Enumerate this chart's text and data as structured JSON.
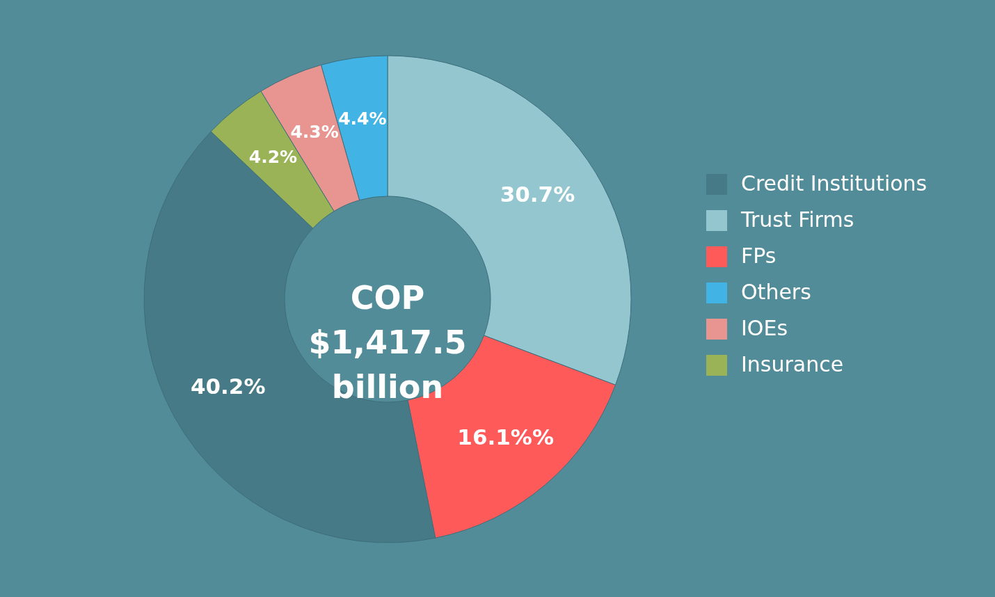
{
  "chart_data": {
    "type": "donut",
    "categories": [
      "Credit Institutions",
      "Trust Firms",
      "FPs",
      "Others",
      "IOEs",
      "Insurance"
    ],
    "values": [
      40.2,
      30.7,
      16.1,
      4.4,
      4.3,
      4.2
    ],
    "colors": [
      "#477a87",
      "#93c6cf",
      "#ff5a5a",
      "#42b3e5",
      "#e89490",
      "#9ab357"
    ],
    "value_labels": [
      "40.2%",
      "30.7%",
      "16.1%%",
      "4.4%",
      "4.3%",
      "4.2%"
    ],
    "annotations": [
      "COP $1,417.5 billion"
    ],
    "legend": "right"
  }
}
